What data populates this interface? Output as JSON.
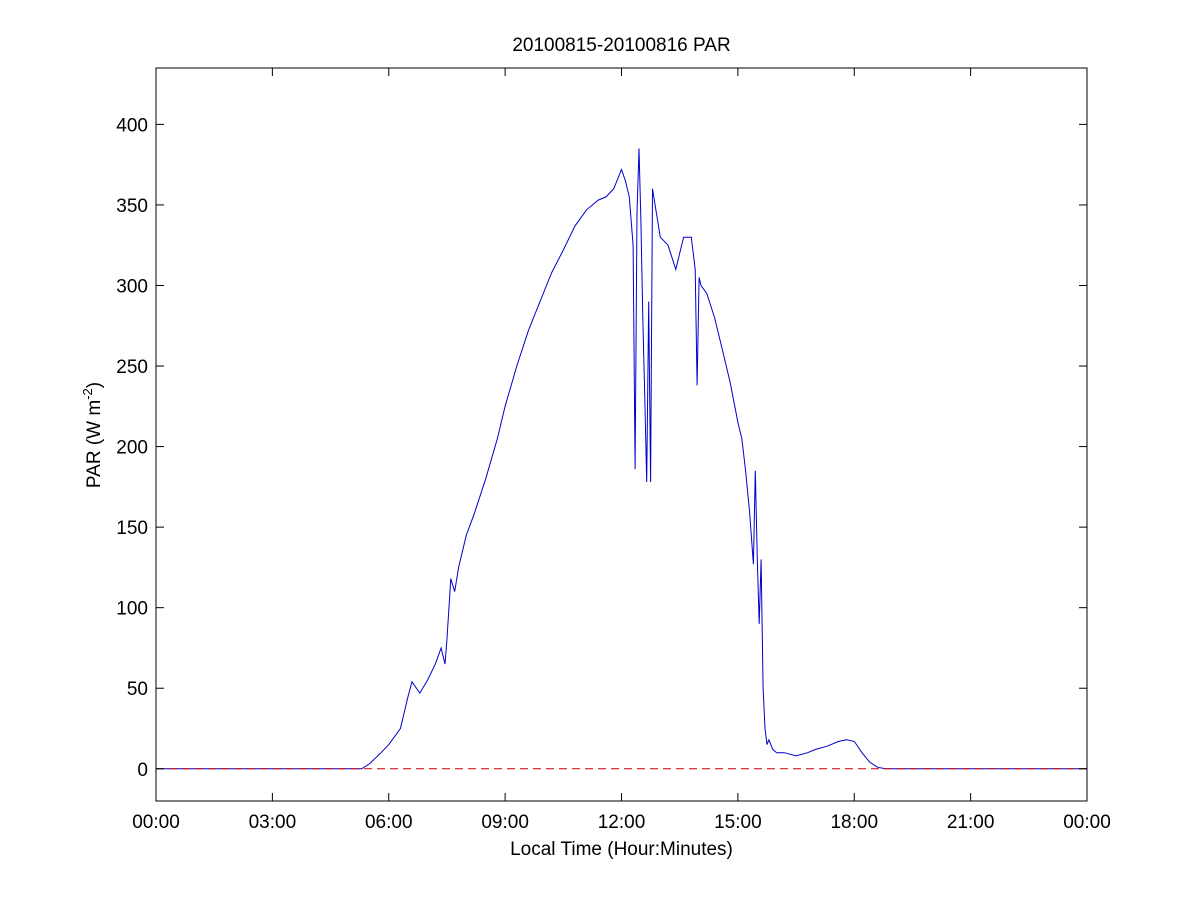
{
  "chart_data": {
    "type": "line",
    "title": "20100815-20100816 PAR",
    "xlabel": "Local Time (Hour:Minutes)",
    "ylabel": {
      "main": "PAR (W m",
      "sup": "-2",
      "close": ")"
    },
    "xlim": [
      0,
      24
    ],
    "ylim": [
      -20,
      435
    ],
    "x_ticks": [
      0,
      3,
      6,
      9,
      12,
      15,
      18,
      21,
      24
    ],
    "x_tick_labels": [
      "00:00",
      "03:00",
      "06:00",
      "09:00",
      "12:00",
      "15:00",
      "18:00",
      "21:00",
      "00:00"
    ],
    "y_ticks": [
      0,
      50,
      100,
      150,
      200,
      250,
      300,
      350,
      400
    ],
    "y_tick_labels": [
      "0",
      "50",
      "100",
      "150",
      "200",
      "250",
      "300",
      "350",
      "400"
    ],
    "grid": false,
    "series": [
      {
        "color": "#0000cc",
        "style": "solid",
        "x": [
          0,
          5.3,
          5.5,
          5.8,
          6.0,
          6.3,
          6.5,
          6.6,
          6.8,
          7.0,
          7.2,
          7.35,
          7.45,
          7.5,
          7.6,
          7.7,
          7.8,
          8.0,
          8.2,
          8.5,
          8.8,
          9.0,
          9.3,
          9.6,
          9.9,
          10.2,
          10.5,
          10.8,
          11.1,
          11.4,
          11.6,
          11.8,
          12.0,
          12.1,
          12.2,
          12.3,
          12.35,
          12.4,
          12.45,
          12.5,
          12.55,
          12.6,
          12.65,
          12.7,
          12.75,
          12.8,
          12.9,
          13.0,
          13.2,
          13.4,
          13.5,
          13.6,
          13.8,
          13.9,
          13.95,
          14.0,
          14.05,
          14.2,
          14.4,
          14.6,
          14.8,
          15.0,
          15.1,
          15.2,
          15.3,
          15.4,
          15.45,
          15.5,
          15.55,
          15.6,
          15.65,
          15.7,
          15.75,
          15.8,
          15.9,
          16.0,
          16.2,
          16.5,
          16.8,
          17.0,
          17.3,
          17.6,
          17.8,
          18.0,
          18.2,
          18.4,
          18.6,
          18.8,
          19.0,
          24
        ],
        "y": [
          0,
          0,
          3,
          10,
          15,
          25,
          45,
          54,
          47,
          55,
          65,
          75,
          65,
          80,
          118,
          110,
          125,
          145,
          158,
          180,
          205,
          225,
          250,
          272,
          290,
          308,
          322,
          337,
          347,
          353,
          355,
          360,
          372,
          365,
          355,
          325,
          186,
          345,
          385,
          340,
          280,
          230,
          178,
          290,
          178,
          360,
          345,
          330,
          325,
          310,
          320,
          330,
          330,
          310,
          238,
          305,
          300,
          295,
          280,
          260,
          240,
          215,
          205,
          185,
          160,
          127,
          185,
          130,
          90,
          130,
          50,
          25,
          15,
          18,
          12,
          10,
          10,
          8,
          10,
          12,
          14,
          17,
          18,
          17,
          10,
          4,
          1,
          0,
          0,
          0
        ]
      },
      {
        "color": "#cc0000",
        "style": "dashed",
        "x": [
          0,
          24
        ],
        "y": [
          0,
          0
        ]
      }
    ]
  }
}
